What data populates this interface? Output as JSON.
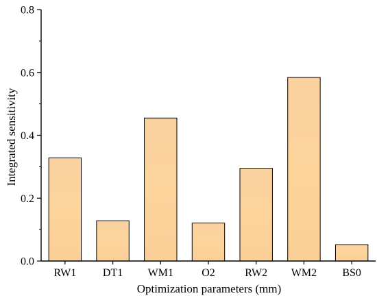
{
  "chart_data": {
    "type": "bar",
    "categories": [
      "RW1",
      "DT1",
      "WM1",
      "O2",
      "RW2",
      "WM2",
      "BS0"
    ],
    "values": [
      0.328,
      0.128,
      0.455,
      0.121,
      0.295,
      0.584,
      0.052
    ],
    "title": "",
    "xlabel": "Optimization parameters (mm)",
    "ylabel": "Integrated sensitivity",
    "ylim": [
      0,
      0.8
    ],
    "yticks": [
      0.0,
      0.2,
      0.4,
      0.6,
      0.8
    ],
    "ytick_labels": [
      "0.0",
      "0.2",
      "0.4",
      "0.6",
      "0.8"
    ],
    "grid": false,
    "legend": "none",
    "colors": {
      "bar_fill_top": "#fad2a0",
      "bar_fill_mid": "#fdd49c",
      "bar_fill_bottom": "#fbcf98",
      "bar_stroke": "#000000",
      "axis": "#000000"
    }
  }
}
